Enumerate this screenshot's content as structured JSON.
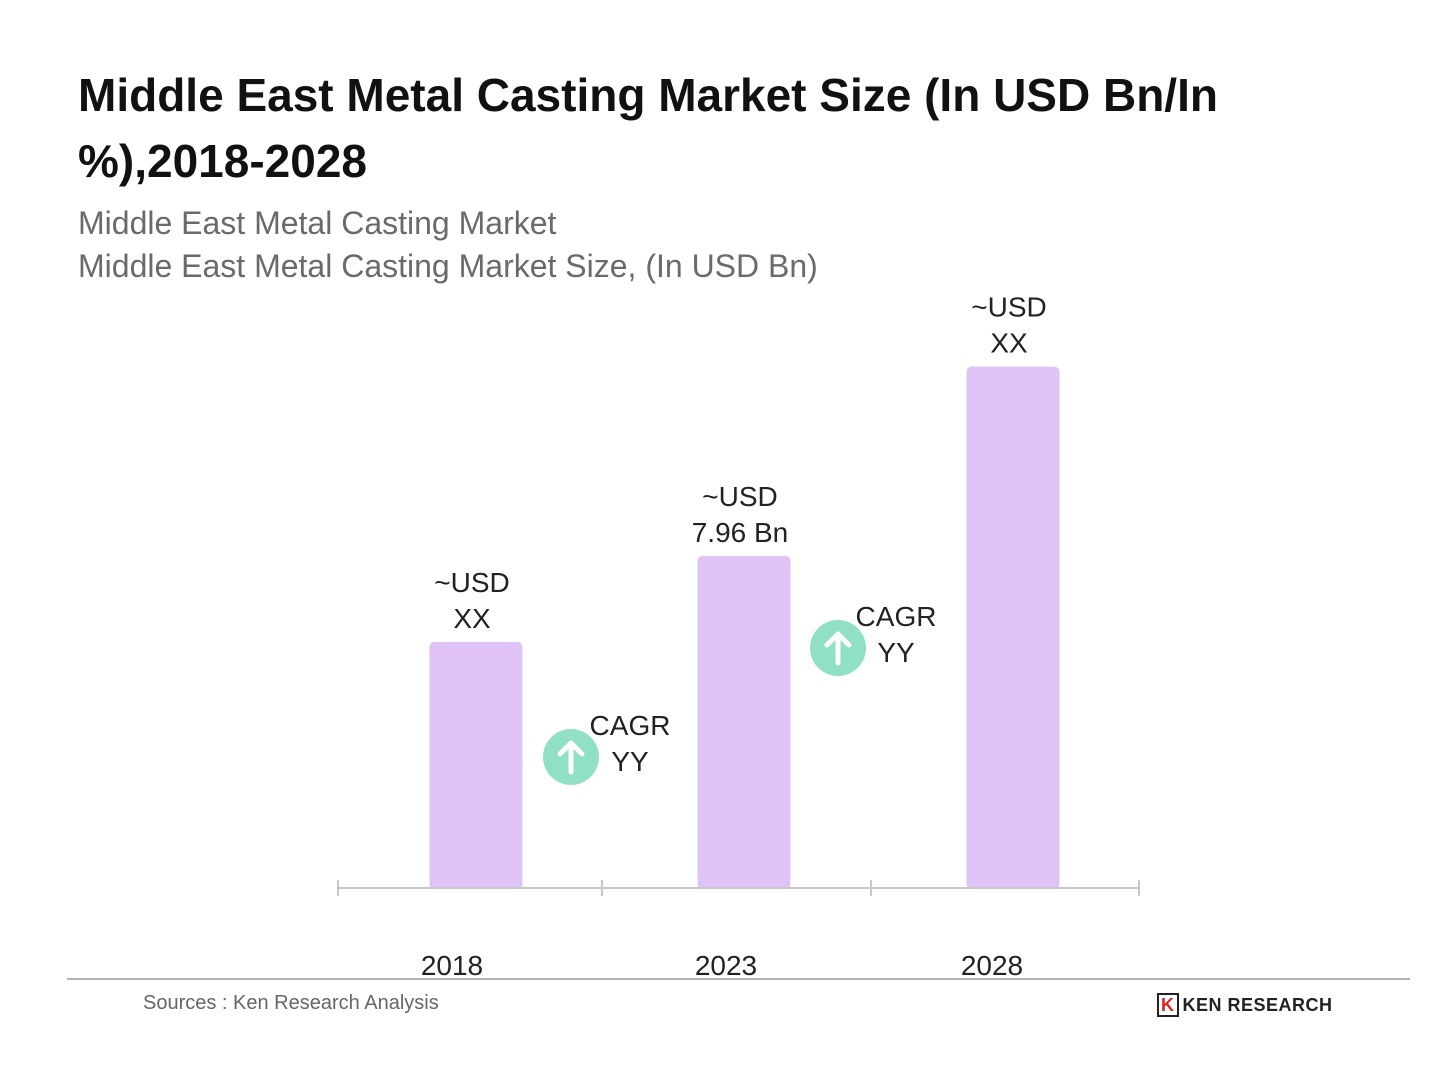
{
  "chart_data": {
    "type": "bar",
    "title": "Middle East Metal Casting Market Size (In USD Bn/In %),2018-2028",
    "subtitle_lines": [
      "Middle East Metal Casting Market",
      "Middle East Metal Casting Market Size, (In USD Bn)"
    ],
    "categories": [
      "2018",
      "2023",
      "2028"
    ],
    "values": [
      5.9,
      7.96,
      12.5
    ],
    "data_labels": [
      [
        "~USD",
        "XX"
      ],
      [
        "~USD",
        "7.96 Bn"
      ],
      [
        "~USD",
        "XX"
      ]
    ],
    "cagr_annotations": [
      [
        "CAGR",
        "YY"
      ],
      [
        "CAGR",
        "YY"
      ]
    ],
    "xlabel": "",
    "ylabel": "",
    "ylim": [
      0,
      14
    ],
    "grid": false,
    "colors": {
      "bar": "#dfc3f7",
      "cagr_circle": "#8fe0c4",
      "axis": "#c8c8c8"
    }
  },
  "footer": {
    "source": "Sources : Ken Research Analysis",
    "logo": "KEN RESEARCH"
  }
}
